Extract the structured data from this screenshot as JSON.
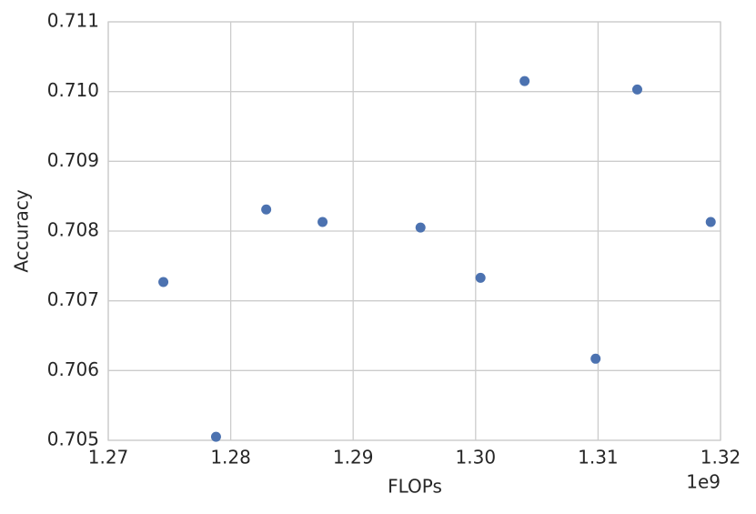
{
  "chart_data": {
    "type": "scatter",
    "x_label": "FLOPs",
    "y_label": "Accuracy",
    "x_offset_label": "1e9",
    "x": [
      1.2745,
      1.2788,
      1.2829,
      1.2875,
      1.2955,
      1.3004,
      1.304,
      1.3098,
      1.3132,
      1.3192
    ],
    "series": [
      {
        "name": "Accuracy",
        "color": "#4c72b0",
        "values": [
          0.70727,
          0.70505,
          0.70831,
          0.70813,
          0.70805,
          0.70733,
          0.71015,
          0.70617,
          0.71003,
          0.70813
        ]
      }
    ],
    "xlim": [
      1.27,
      1.32
    ],
    "xticks": [
      1.27,
      1.28,
      1.29,
      {
        "value": 1.3,
        "label": "1.30"
      },
      1.31,
      1.32
    ],
    "ylim": [
      0.705,
      0.711
    ],
    "yticks": [
      0.705,
      0.706,
      0.707,
      0.708,
      0.709,
      {
        "value": 0.71,
        "label": "0.710"
      },
      0.711
    ],
    "grid": true
  }
}
